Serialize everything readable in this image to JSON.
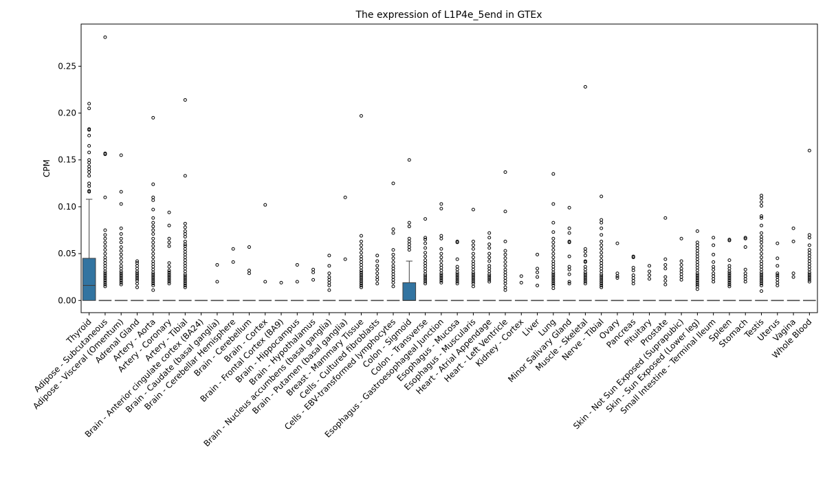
{
  "chart_data": {
    "type": "box",
    "title": "The expression of L1P4e_5end in GTEx",
    "xlabel": "",
    "ylabel": "CPM",
    "ylim": [
      -0.013,
      0.295
    ],
    "yticks": [
      0.0,
      0.05,
      0.1,
      0.15,
      0.2,
      0.25
    ],
    "ytick_labels": [
      "0.00",
      "0.05",
      "0.10",
      "0.15",
      "0.20",
      "0.25"
    ],
    "grid": false,
    "box_color": "#3274a1",
    "categories": [
      "Thyroid",
      "Adipose - Subcutaneous",
      "Adipose - Visceral (Omentum)",
      "Adrenal Gland",
      "Artery - Aorta",
      "Artery - Coronary",
      "Artery - Tibial",
      "Brain - Anterior cingulate cortex (BA24)",
      "Brain - Caudate (basal ganglia)",
      "Brain - Cerebellar Hemisphere",
      "Brain - Cerebellum",
      "Brain - Cortex",
      "Brain - Frontal Cortex (BA9)",
      "Brain - Hippocampus",
      "Brain - Hypothalamus",
      "Brain - Nucleus accumbens (basal ganglia)",
      "Brain - Putamen (basal ganglia)",
      "Breast - Mammary Tissue",
      "Cells - Cultured fibroblasts",
      "Cells - EBV-transformed lymphocytes",
      "Colon - Sigmoid",
      "Colon - Transverse",
      "Esophagus - Gastroesophageal Junction",
      "Esophagus - Mucosa",
      "Esophagus - Muscularis",
      "Heart - Atrial Appendage",
      "Heart - Left Ventricle",
      "Kidney - Cortex",
      "Liver",
      "Lung",
      "Minor Salivary Gland",
      "Muscle - Skeletal",
      "Nerve - Tibial",
      "Ovary",
      "Pancreas",
      "Pituitary",
      "Prostate",
      "Skin - Not Sun Exposed (Suprapubic)",
      "Skin - Sun Exposed (Lower leg)",
      "Small Intestine - Terminal Ileum",
      "Spleen",
      "Stomach",
      "Testis",
      "Uterus",
      "Vagina",
      "Whole Blood"
    ],
    "boxes": [
      {
        "q1": 0.0,
        "median": 0.016,
        "q3": 0.045,
        "whislo": 0.0,
        "whishi": 0.108,
        "fliers": [
          0.21,
          0.205,
          0.183,
          0.182,
          0.176,
          0.165,
          0.158,
          0.15,
          0.147,
          0.143,
          0.14,
          0.137,
          0.133,
          0.125,
          0.122,
          0.117,
          0.116
        ]
      },
      {
        "q1": 0.0,
        "median": 0.0,
        "q3": 0.0,
        "whislo": 0.0,
        "whishi": 0.0,
        "fliers": [
          0.281,
          0.157,
          0.156,
          0.11,
          0.075,
          0.07,
          0.066,
          0.062,
          0.058,
          0.054,
          0.05,
          0.046,
          0.043,
          0.04,
          0.037,
          0.034,
          0.031,
          0.029,
          0.027,
          0.025,
          0.023,
          0.021,
          0.019,
          0.017,
          0.015
        ]
      },
      {
        "q1": 0.0,
        "median": 0.0,
        "q3": 0.0,
        "whislo": 0.0,
        "whishi": 0.0,
        "fliers": [
          0.155,
          0.116,
          0.103,
          0.077,
          0.071,
          0.066,
          0.062,
          0.057,
          0.053,
          0.049,
          0.045,
          0.041,
          0.037,
          0.034,
          0.031,
          0.029,
          0.027,
          0.025,
          0.023,
          0.021,
          0.019,
          0.017
        ]
      },
      {
        "q1": 0.0,
        "median": 0.0,
        "q3": 0.0,
        "whislo": 0.0,
        "whishi": 0.0,
        "fliers": [
          0.042,
          0.04,
          0.037,
          0.034,
          0.031,
          0.029,
          0.027,
          0.025,
          0.023,
          0.021,
          0.018,
          0.014
        ]
      },
      {
        "q1": 0.0,
        "median": 0.0,
        "q3": 0.0,
        "whislo": 0.0,
        "whishi": 0.0,
        "fliers": [
          0.195,
          0.124,
          0.11,
          0.107,
          0.097,
          0.088,
          0.083,
          0.079,
          0.075,
          0.071,
          0.066,
          0.062,
          0.058,
          0.054,
          0.05,
          0.046,
          0.042,
          0.039,
          0.036,
          0.033,
          0.03,
          0.028,
          0.026,
          0.024,
          0.022,
          0.02,
          0.018,
          0.016,
          0.011
        ]
      },
      {
        "q1": 0.0,
        "median": 0.0,
        "q3": 0.0,
        "whislo": 0.0,
        "whishi": 0.0,
        "fliers": [
          0.094,
          0.08,
          0.066,
          0.062,
          0.058,
          0.04,
          0.036,
          0.032,
          0.03,
          0.028,
          0.026,
          0.024,
          0.022,
          0.02,
          0.018
        ]
      },
      {
        "q1": 0.0,
        "median": 0.0,
        "q3": 0.0,
        "whislo": 0.0,
        "whishi": 0.0,
        "fliers": [
          0.214,
          0.133,
          0.082,
          0.078,
          0.074,
          0.071,
          0.068,
          0.063,
          0.06,
          0.058,
          0.055,
          0.052,
          0.049,
          0.046,
          0.043,
          0.04,
          0.037,
          0.034,
          0.031,
          0.028,
          0.026,
          0.024,
          0.022,
          0.02,
          0.018,
          0.016,
          0.014
        ]
      },
      {
        "q1": 0.0,
        "median": 0.0,
        "q3": 0.0,
        "whislo": 0.0,
        "whishi": 0.0,
        "fliers": []
      },
      {
        "q1": 0.0,
        "median": 0.0,
        "q3": 0.0,
        "whislo": 0.0,
        "whishi": 0.0,
        "fliers": [
          0.038,
          0.02
        ]
      },
      {
        "q1": 0.0,
        "median": 0.0,
        "q3": 0.0,
        "whislo": 0.0,
        "whishi": 0.0,
        "fliers": [
          0.055,
          0.041
        ]
      },
      {
        "q1": 0.0,
        "median": 0.0,
        "q3": 0.0,
        "whislo": 0.0,
        "whishi": 0.0,
        "fliers": [
          0.057,
          0.032,
          0.029
        ]
      },
      {
        "q1": 0.0,
        "median": 0.0,
        "q3": 0.0,
        "whislo": 0.0,
        "whishi": 0.0,
        "fliers": [
          0.102,
          0.02
        ]
      },
      {
        "q1": 0.0,
        "median": 0.0,
        "q3": 0.0,
        "whislo": 0.0,
        "whishi": 0.0,
        "fliers": [
          0.019
        ]
      },
      {
        "q1": 0.0,
        "median": 0.0,
        "q3": 0.0,
        "whislo": 0.0,
        "whishi": 0.0,
        "fliers": [
          0.038,
          0.02
        ]
      },
      {
        "q1": 0.0,
        "median": 0.0,
        "q3": 0.0,
        "whislo": 0.0,
        "whishi": 0.0,
        "fliers": [
          0.033,
          0.03,
          0.022
        ]
      },
      {
        "q1": 0.0,
        "median": 0.0,
        "q3": 0.0,
        "whislo": 0.0,
        "whishi": 0.0,
        "fliers": [
          0.048,
          0.037,
          0.029,
          0.025,
          0.022,
          0.019,
          0.016,
          0.011
        ]
      },
      {
        "q1": 0.0,
        "median": 0.0,
        "q3": 0.0,
        "whislo": 0.0,
        "whishi": 0.0,
        "fliers": [
          0.11,
          0.044
        ]
      },
      {
        "q1": 0.0,
        "median": 0.0,
        "q3": 0.0,
        "whislo": 0.0,
        "whishi": 0.0,
        "fliers": [
          0.197,
          0.069,
          0.063,
          0.059,
          0.055,
          0.051,
          0.047,
          0.044,
          0.041,
          0.038,
          0.035,
          0.032,
          0.03,
          0.028,
          0.026,
          0.024,
          0.022,
          0.02,
          0.018,
          0.016,
          0.014
        ]
      },
      {
        "q1": 0.0,
        "median": 0.0,
        "q3": 0.0,
        "whislo": 0.0,
        "whishi": 0.0,
        "fliers": [
          0.048,
          0.042,
          0.037,
          0.033,
          0.029,
          0.025,
          0.022,
          0.018
        ]
      },
      {
        "q1": 0.0,
        "median": 0.0,
        "q3": 0.0,
        "whislo": 0.0,
        "whishi": 0.0,
        "fliers": [
          0.125,
          0.076,
          0.072,
          0.054,
          0.049,
          0.045,
          0.041,
          0.037,
          0.034,
          0.031,
          0.028,
          0.025,
          0.022,
          0.019,
          0.015
        ]
      },
      {
        "q1": 0.0,
        "median": 0.0,
        "q3": 0.019,
        "whislo": 0.0,
        "whishi": 0.042,
        "fliers": [
          0.15,
          0.083,
          0.079,
          0.066,
          0.063,
          0.06,
          0.057,
          0.054
        ]
      },
      {
        "q1": 0.0,
        "median": 0.0,
        "q3": 0.0,
        "whislo": 0.0,
        "whishi": 0.0,
        "fliers": [
          0.087,
          0.067,
          0.065,
          0.061,
          0.056,
          0.051,
          0.047,
          0.043,
          0.04,
          0.037,
          0.034,
          0.031,
          0.028,
          0.026,
          0.024,
          0.022,
          0.02,
          0.018
        ]
      },
      {
        "q1": 0.0,
        "median": 0.0,
        "q3": 0.0,
        "whislo": 0.0,
        "whishi": 0.0,
        "fliers": [
          0.103,
          0.098,
          0.069,
          0.066,
          0.055,
          0.05,
          0.046,
          0.042,
          0.038,
          0.035,
          0.032,
          0.029,
          0.027,
          0.025,
          0.023,
          0.021,
          0.019
        ]
      },
      {
        "q1": 0.0,
        "median": 0.0,
        "q3": 0.0,
        "whislo": 0.0,
        "whishi": 0.0,
        "fliers": [
          0.063,
          0.062,
          0.044,
          0.036,
          0.033,
          0.03,
          0.028,
          0.026,
          0.024,
          0.022,
          0.02,
          0.018
        ]
      },
      {
        "q1": 0.0,
        "median": 0.0,
        "q3": 0.0,
        "whislo": 0.0,
        "whishi": 0.0,
        "fliers": [
          0.097,
          0.063,
          0.059,
          0.055,
          0.05,
          0.046,
          0.042,
          0.039,
          0.036,
          0.033,
          0.03,
          0.028,
          0.026,
          0.024,
          0.022,
          0.02,
          0.018,
          0.015
        ]
      },
      {
        "q1": 0.0,
        "median": 0.0,
        "q3": 0.0,
        "whislo": 0.0,
        "whishi": 0.0,
        "fliers": [
          0.072,
          0.067,
          0.06,
          0.056,
          0.05,
          0.046,
          0.042,
          0.037,
          0.034,
          0.031,
          0.028,
          0.026,
          0.024,
          0.022,
          0.02
        ]
      },
      {
        "q1": 0.0,
        "median": 0.0,
        "q3": 0.0,
        "whislo": 0.0,
        "whishi": 0.0,
        "fliers": [
          0.137,
          0.095,
          0.063,
          0.053,
          0.049,
          0.045,
          0.041,
          0.037,
          0.033,
          0.03,
          0.027,
          0.024,
          0.021,
          0.018,
          0.014,
          0.011
        ]
      },
      {
        "q1": 0.0,
        "median": 0.0,
        "q3": 0.0,
        "whislo": 0.0,
        "whishi": 0.0,
        "fliers": [
          0.026,
          0.019
        ]
      },
      {
        "q1": 0.0,
        "median": 0.0,
        "q3": 0.0,
        "whislo": 0.0,
        "whishi": 0.0,
        "fliers": [
          0.049,
          0.034,
          0.03,
          0.025,
          0.016
        ]
      },
      {
        "q1": 0.0,
        "median": 0.0,
        "q3": 0.0,
        "whislo": 0.0,
        "whishi": 0.0,
        "fliers": [
          0.135,
          0.103,
          0.083,
          0.073,
          0.066,
          0.062,
          0.058,
          0.054,
          0.05,
          0.046,
          0.042,
          0.039,
          0.036,
          0.033,
          0.03,
          0.028,
          0.026,
          0.024,
          0.022,
          0.02,
          0.018,
          0.016,
          0.013
        ]
      },
      {
        "q1": 0.0,
        "median": 0.0,
        "q3": 0.0,
        "whislo": 0.0,
        "whishi": 0.0,
        "fliers": [
          0.099,
          0.077,
          0.072,
          0.063,
          0.062,
          0.047,
          0.036,
          0.033,
          0.028,
          0.02,
          0.018
        ]
      },
      {
        "q1": 0.0,
        "median": 0.0,
        "q3": 0.0,
        "whislo": 0.0,
        "whishi": 0.0,
        "fliers": [
          0.228,
          0.055,
          0.052,
          0.048,
          0.042,
          0.041,
          0.036,
          0.033,
          0.03,
          0.028,
          0.026,
          0.024,
          0.022,
          0.02,
          0.018
        ]
      },
      {
        "q1": 0.0,
        "median": 0.0,
        "q3": 0.0,
        "whislo": 0.0,
        "whishi": 0.0,
        "fliers": [
          0.111,
          0.086,
          0.083,
          0.077,
          0.07,
          0.063,
          0.059,
          0.055,
          0.051,
          0.047,
          0.043,
          0.04,
          0.037,
          0.034,
          0.031,
          0.028,
          0.026,
          0.024,
          0.022,
          0.02,
          0.018,
          0.016,
          0.014
        ]
      },
      {
        "q1": 0.0,
        "median": 0.0,
        "q3": 0.0,
        "whislo": 0.0,
        "whishi": 0.0,
        "fliers": [
          0.061,
          0.029,
          0.026,
          0.024
        ]
      },
      {
        "q1": 0.0,
        "median": 0.0,
        "q3": 0.0,
        "whislo": 0.0,
        "whishi": 0.0,
        "fliers": [
          0.047,
          0.046,
          0.035,
          0.032,
          0.027,
          0.024,
          0.021,
          0.018
        ]
      },
      {
        "q1": 0.0,
        "median": 0.0,
        "q3": 0.0,
        "whislo": 0.0,
        "whishi": 0.0,
        "fliers": [
          0.037,
          0.031,
          0.027,
          0.023
        ]
      },
      {
        "q1": 0.0,
        "median": 0.0,
        "q3": 0.0,
        "whislo": 0.0,
        "whishi": 0.0,
        "fliers": [
          0.088,
          0.044,
          0.038,
          0.034,
          0.025,
          0.021,
          0.017
        ]
      },
      {
        "q1": 0.0,
        "median": 0.0,
        "q3": 0.0,
        "whislo": 0.0,
        "whishi": 0.0,
        "fliers": [
          0.066,
          0.042,
          0.038,
          0.034,
          0.031,
          0.028,
          0.025,
          0.022
        ]
      },
      {
        "q1": 0.0,
        "median": 0.0,
        "q3": 0.0,
        "whislo": 0.0,
        "whishi": 0.0,
        "fliers": [
          0.074,
          0.062,
          0.059,
          0.056,
          0.053,
          0.05,
          0.047,
          0.044,
          0.041,
          0.038,
          0.035,
          0.032,
          0.029,
          0.027,
          0.025,
          0.023,
          0.021,
          0.019,
          0.017,
          0.015,
          0.012
        ]
      },
      {
        "q1": 0.0,
        "median": 0.0,
        "q3": 0.0,
        "whislo": 0.0,
        "whishi": 0.0,
        "fliers": [
          0.067,
          0.059,
          0.049,
          0.041,
          0.036,
          0.033,
          0.029,
          0.026,
          0.023,
          0.02
        ]
      },
      {
        "q1": 0.0,
        "median": 0.0,
        "q3": 0.0,
        "whislo": 0.0,
        "whishi": 0.0,
        "fliers": [
          0.065,
          0.064,
          0.043,
          0.037,
          0.034,
          0.031,
          0.029,
          0.027,
          0.025,
          0.023,
          0.021,
          0.019,
          0.017,
          0.015
        ]
      },
      {
        "q1": 0.0,
        "median": 0.0,
        "q3": 0.0,
        "whislo": 0.0,
        "whishi": 0.0,
        "fliers": [
          0.067,
          0.066,
          0.057,
          0.033,
          0.029,
          0.026,
          0.023,
          0.02
        ]
      },
      {
        "q1": 0.0,
        "median": 0.0,
        "q3": 0.0,
        "whislo": 0.0,
        "whishi": 0.0,
        "fliers": [
          0.112,
          0.109,
          0.105,
          0.101,
          0.09,
          0.088,
          0.08,
          0.072,
          0.068,
          0.065,
          0.062,
          0.058,
          0.054,
          0.05,
          0.046,
          0.042,
          0.039,
          0.036,
          0.033,
          0.03,
          0.028,
          0.026,
          0.024,
          0.022,
          0.02,
          0.018,
          0.016,
          0.01
        ]
      },
      {
        "q1": 0.0,
        "median": 0.0,
        "q3": 0.0,
        "whislo": 0.0,
        "whishi": 0.0,
        "fliers": [
          0.061,
          0.045,
          0.037,
          0.029,
          0.027,
          0.025,
          0.022,
          0.019,
          0.016
        ]
      },
      {
        "q1": 0.0,
        "median": 0.0,
        "q3": 0.0,
        "whislo": 0.0,
        "whishi": 0.0,
        "fliers": [
          0.077,
          0.063,
          0.029,
          0.025
        ]
      },
      {
        "q1": 0.0,
        "median": 0.0,
        "q3": 0.0,
        "whislo": 0.0,
        "whishi": 0.0,
        "fliers": [
          0.16,
          0.07,
          0.067,
          0.059,
          0.054,
          0.051,
          0.048,
          0.045,
          0.042,
          0.039,
          0.036,
          0.033,
          0.03,
          0.028,
          0.026,
          0.024,
          0.022,
          0.02
        ]
      }
    ]
  }
}
